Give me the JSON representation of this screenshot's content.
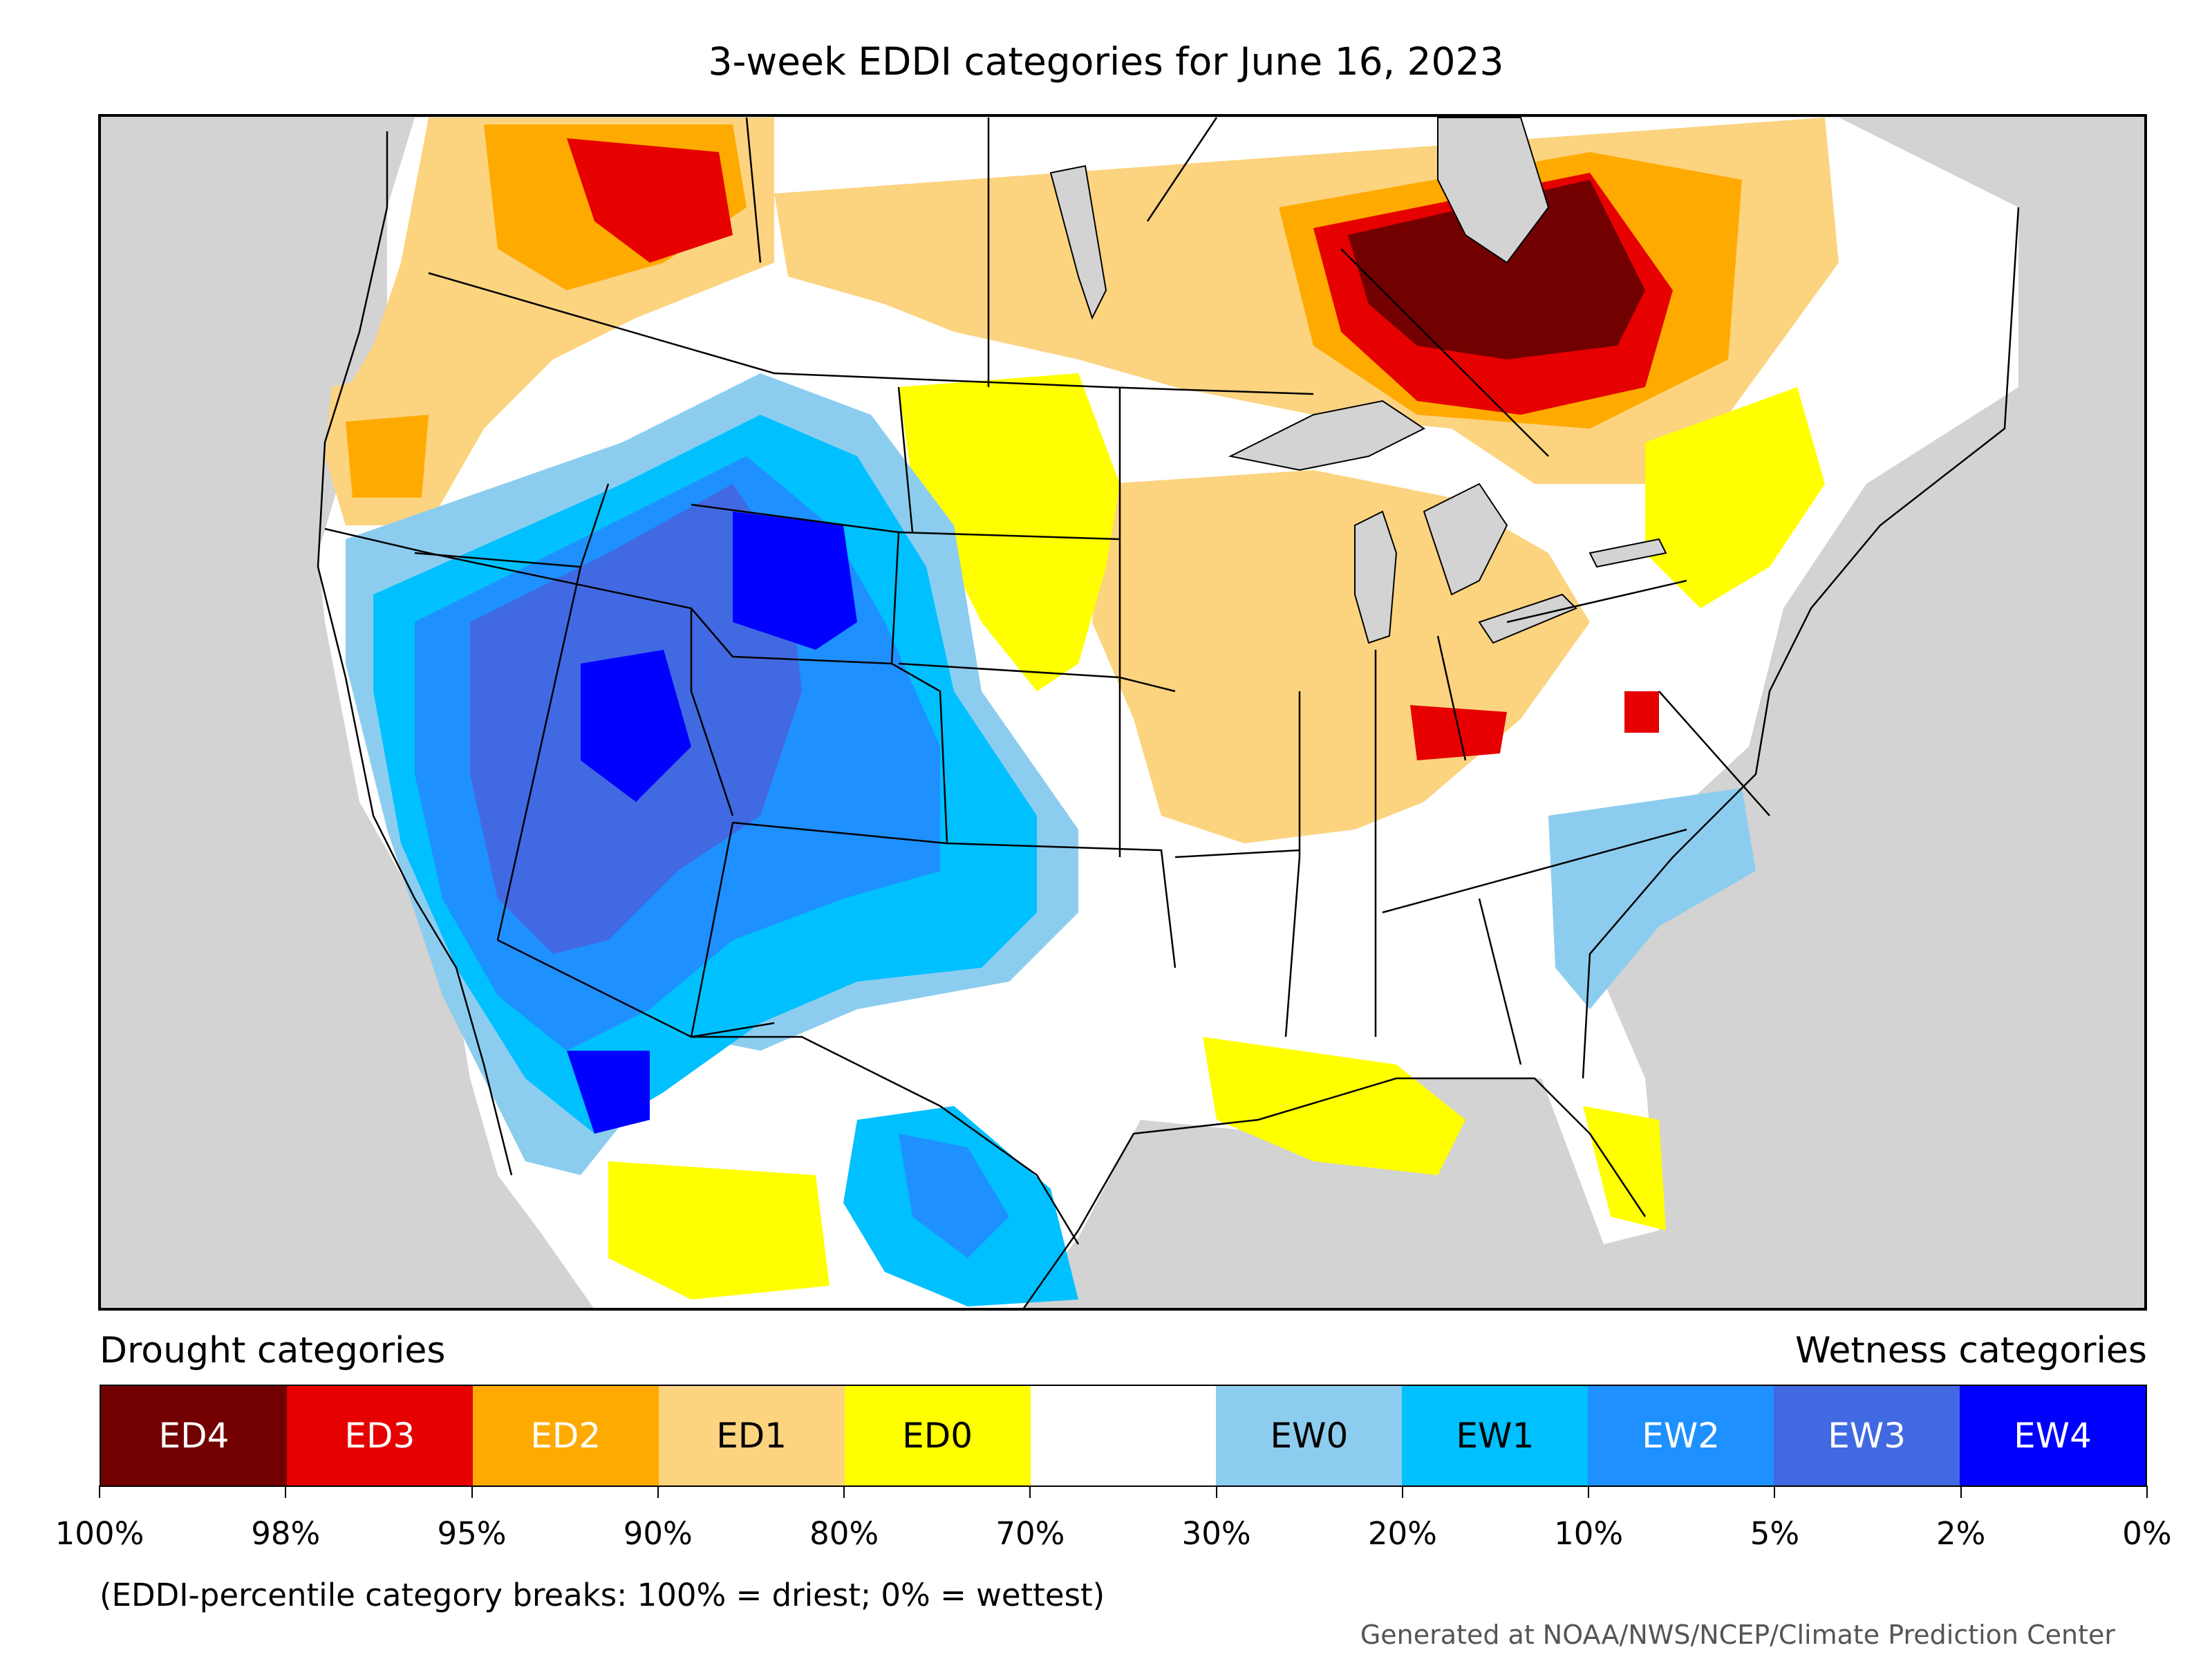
{
  "title": "3-week EDDI categories for June 16, 2023",
  "legend": {
    "drought_heading": "Drought categories",
    "wetness_heading": "Wetness categories",
    "categories": [
      {
        "label": "ED4",
        "color": "#730000",
        "text_color": "#ffffff"
      },
      {
        "label": "ED3",
        "color": "#e60000",
        "text_color": "#ffffff"
      },
      {
        "label": "ED2",
        "color": "#ffaa00",
        "text_color": "#ffffff"
      },
      {
        "label": "ED1",
        "color": "#fcd37f",
        "text_color": "#000000"
      },
      {
        "label": "ED0",
        "color": "#ffff00",
        "text_color": "#000000"
      },
      {
        "label": "",
        "color": "#ffffff",
        "text_color": "#000000"
      },
      {
        "label": "EW0",
        "color": "#8ccdef",
        "text_color": "#000000"
      },
      {
        "label": "EW1",
        "color": "#00c0ff",
        "text_color": "#000000"
      },
      {
        "label": "EW2",
        "color": "#1e90ff",
        "text_color": "#ffffff"
      },
      {
        "label": "EW3",
        "color": "#4169e1",
        "text_color": "#ffffff"
      },
      {
        "label": "EW4",
        "color": "#0000ff",
        "text_color": "#ffffff"
      }
    ],
    "breaks": [
      "100%",
      "98%",
      "95%",
      "90%",
      "80%",
      "70%",
      "30%",
      "20%",
      "10%",
      "5%",
      "2%",
      "0%"
    ]
  },
  "note": "(EDDI-percentile category breaks: 100% = driest; 0% = wettest)",
  "credit": "Generated at NOAA/NWS/NCEP/Climate Prediction Center",
  "map": {
    "background_color": "#d3d3d3",
    "water_color": "#d3d3d3",
    "border_color": "#000000"
  }
}
